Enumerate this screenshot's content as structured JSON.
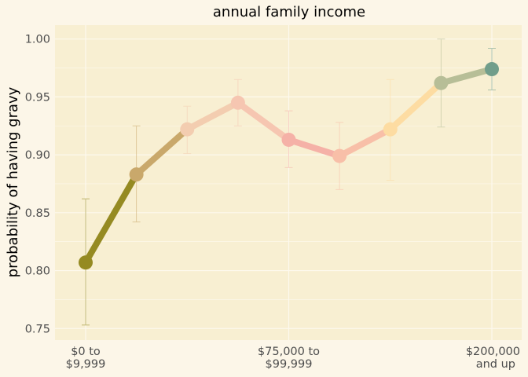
{
  "chart_data": {
    "type": "line",
    "title": "annual family income",
    "xlabel": "",
    "ylabel": "probability of having gravy",
    "ylim": [
      0.74,
      1.012
    ],
    "yticks": [
      "0.75",
      "0.80",
      "0.85",
      "0.90",
      "0.95",
      "1.00"
    ],
    "ytick_values": [
      0.75,
      0.8,
      0.85,
      0.9,
      0.95,
      1.0
    ],
    "xtick_labels": [
      {
        "index": 0,
        "lines": [
          "$0 to",
          "$9,999"
        ]
      },
      {
        "index": 4,
        "lines": [
          "$75,000 to",
          "$99,999"
        ]
      },
      {
        "index": 8,
        "lines": [
          "$200,000",
          "and up"
        ]
      }
    ],
    "points": [
      {
        "index": 0,
        "y": 0.807,
        "lower": 0.753,
        "upper": 0.862,
        "color": "#958a22"
      },
      {
        "index": 1,
        "y": 0.883,
        "lower": 0.842,
        "upper": 0.925,
        "color": "#c9a86b"
      },
      {
        "index": 2,
        "y": 0.922,
        "lower": 0.901,
        "upper": 0.942,
        "color": "#f3cdb0"
      },
      {
        "index": 3,
        "y": 0.945,
        "lower": 0.925,
        "upper": 0.965,
        "color": "#f6c6b1"
      },
      {
        "index": 4,
        "y": 0.913,
        "lower": 0.889,
        "upper": 0.938,
        "color": "#f5b1a7"
      },
      {
        "index": 5,
        "y": 0.899,
        "lower": 0.87,
        "upper": 0.928,
        "color": "#f8bfa8"
      },
      {
        "index": 6,
        "y": 0.922,
        "lower": 0.878,
        "upper": 0.965,
        "color": "#fddca2"
      },
      {
        "index": 7,
        "y": 0.962,
        "lower": 0.924,
        "upper": 1.0,
        "color": "#b7be97"
      },
      {
        "index": 8,
        "y": 0.974,
        "lower": 0.956,
        "upper": 0.992,
        "color": "#719e8b"
      }
    ],
    "grid": true,
    "colors": {
      "background": "#fcf6e8",
      "panel": "#f8efd2",
      "grid": "#fdf9ee"
    }
  }
}
